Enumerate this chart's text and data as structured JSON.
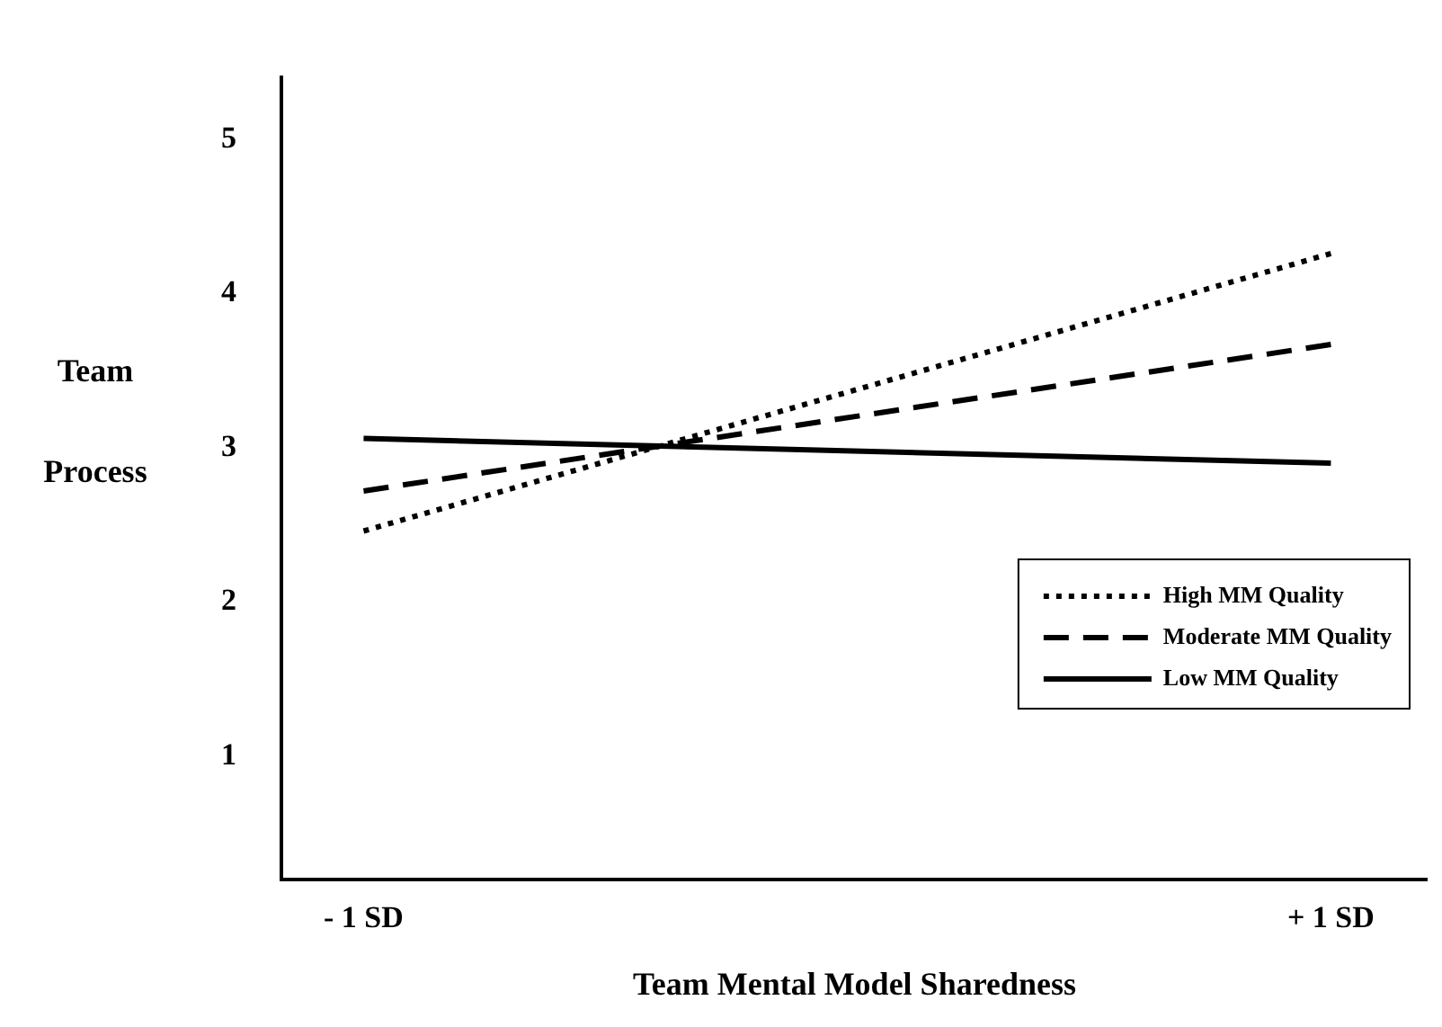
{
  "chart_data": {
    "type": "line",
    "xlabel": "Team Mental Model Sharedness",
    "ylabel": "Team\nProcess",
    "x": [
      -1,
      1
    ],
    "xlim": [
      -1.17,
      1.2
    ],
    "xticks": [
      {
        "value": -1,
        "label": "- 1 SD"
      },
      {
        "value": 1,
        "label": "+ 1 SD"
      }
    ],
    "series": [
      {
        "name": "High MM Quality",
        "color": "#000000",
        "values": [
          2.46,
          4.26
        ],
        "line_style": "dotted"
      },
      {
        "name": "Moderate MM Quality",
        "color": "#000000",
        "values": [
          2.72,
          3.67
        ],
        "line_style": "dashed"
      },
      {
        "name": "Low MM Quality",
        "color": "#000000",
        "values": [
          3.06,
          2.9
        ],
        "line_style": "solid"
      }
    ],
    "ylim": [
      0.2,
      5.4
    ],
    "yticks": [
      1,
      2,
      3,
      4,
      5
    ],
    "grid": false,
    "legend": "bottom right",
    "marker": "none"
  }
}
